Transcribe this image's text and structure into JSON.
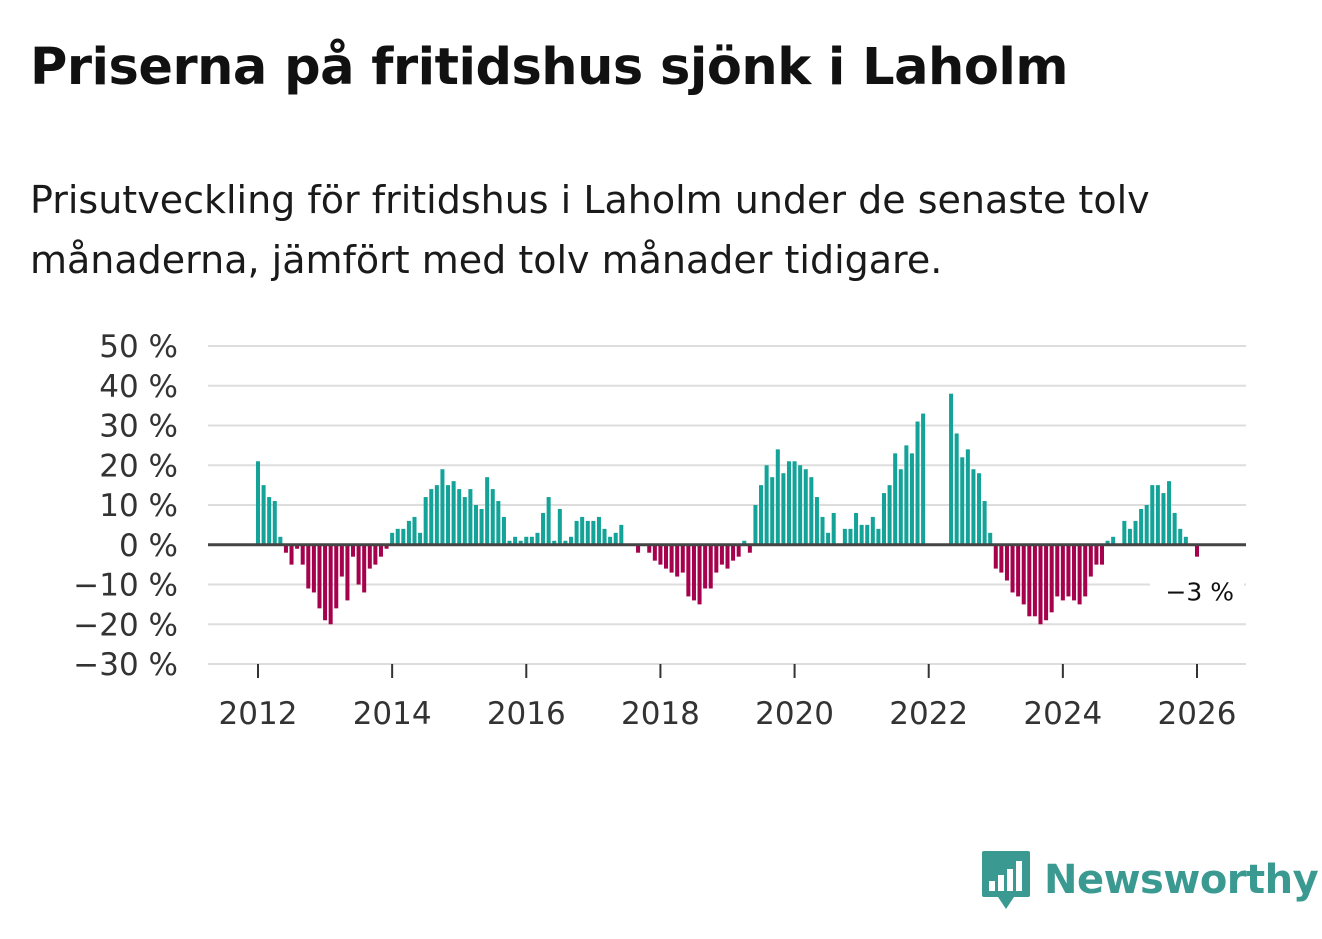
{
  "title": "Priserna på fritidshus sjönk i Laholm",
  "subtitle": "Prisutveckling för fritidshus i Laholm under de senaste tolv månaderna, jämfört med tolv månader tidigare.",
  "brand": {
    "name": "Newsworthy",
    "color": "#3a9a91",
    "icon": "newsworthy-logo-icon"
  },
  "chart_data": {
    "type": "bar",
    "title": "Priserna på fritidshus sjönk i Laholm",
    "xlabel": "",
    "ylabel": "",
    "ylim": [
      -30,
      50
    ],
    "yticks": [
      -30,
      -20,
      -10,
      0,
      10,
      20,
      30,
      40,
      50
    ],
    "ytick_labels": [
      "−30 %",
      "−20 %",
      "−10 %",
      "0 %",
      "10 %",
      "20 %",
      "30 %",
      "40 %",
      "50 %"
    ],
    "xticks": [
      2012,
      2014,
      2016,
      2018,
      2020,
      2022,
      2024,
      2026
    ],
    "xtick_labels": [
      "2012",
      "2014",
      "2016",
      "2018",
      "2020",
      "2022",
      "2024",
      "2026"
    ],
    "grid": true,
    "start": "2012-01",
    "frequency": "monthly",
    "positive_color": "#13a398",
    "negative_color": "#a5014d",
    "values": [
      21,
      15,
      12,
      11,
      2,
      -2,
      -5,
      -1,
      -5,
      -11,
      -12,
      -16,
      -19,
      -20,
      -16,
      -8,
      -14,
      -3,
      -10,
      -12,
      -6,
      -5,
      -3,
      -1,
      3,
      4,
      4,
      6,
      7,
      3,
      12,
      14,
      15,
      19,
      15,
      16,
      14,
      12,
      14,
      10,
      9,
      17,
      14,
      11,
      7,
      1,
      2,
      1,
      2,
      2,
      3,
      8,
      12,
      1,
      9,
      1,
      2,
      6,
      7,
      6,
      6,
      7,
      4,
      2,
      3,
      5,
      null,
      null,
      -2,
      null,
      -2,
      -4,
      -5,
      -6,
      -7,
      -8,
      -7,
      -13,
      -14,
      -15,
      -11,
      -11,
      -7,
      -5,
      -6,
      -4,
      -3,
      1,
      -2,
      10,
      15,
      20,
      17,
      24,
      18,
      21,
      21,
      20,
      19,
      17,
      12,
      7,
      3,
      8,
      null,
      4,
      4,
      8,
      5,
      5,
      7,
      4,
      13,
      15,
      23,
      19,
      25,
      23,
      31,
      33,
      null,
      null,
      null,
      null,
      38,
      28,
      22,
      24,
      19,
      18,
      11,
      3,
      -6,
      -7,
      -9,
      -12,
      -13,
      -15,
      -18,
      -18,
      -20,
      -19,
      -17,
      -13,
      -14,
      -13,
      -14,
      -15,
      -13,
      -8,
      -5,
      -5,
      1,
      2,
      null,
      6,
      4,
      6,
      9,
      10,
      15,
      15,
      13,
      16,
      8,
      4,
      2,
      null,
      -3
    ],
    "annotations": [
      {
        "text": "−3 %",
        "value": -3,
        "target": "last-bar"
      }
    ]
  }
}
